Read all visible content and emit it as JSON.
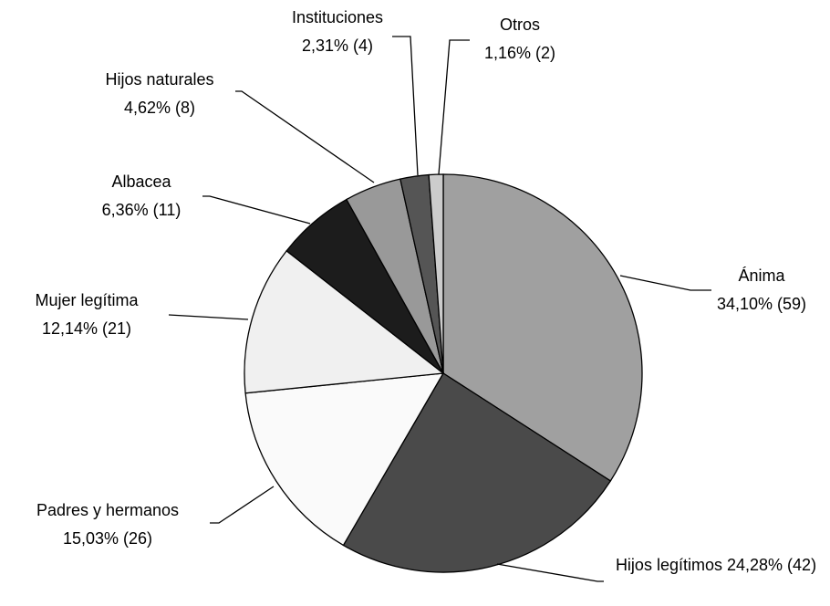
{
  "chart_data": {
    "type": "pie",
    "categories": [
      "Ánima",
      "Hijos legítimos",
      "Padres y hermanos",
      "Mujer legítima",
      "Albacea",
      "Hijos naturales",
      "Instituciones",
      "Otros"
    ],
    "values": [
      34.1,
      24.28,
      15.03,
      12.14,
      6.36,
      4.62,
      2.31,
      1.16
    ],
    "value_labels": [
      "34,10% (59)",
      "24,28% (42)",
      "15,03% (26)",
      "12,14% (21)",
      "6,36% (11)",
      "4,62% (8)",
      "2,31% (4)",
      "1,16% (2)"
    ],
    "colors": [
      "#a0a0a0",
      "#4a4a4a",
      "#fafafa",
      "#f0f0f0",
      "#1c1c1c",
      "#999999",
      "#555555",
      "#cccccc"
    ]
  }
}
